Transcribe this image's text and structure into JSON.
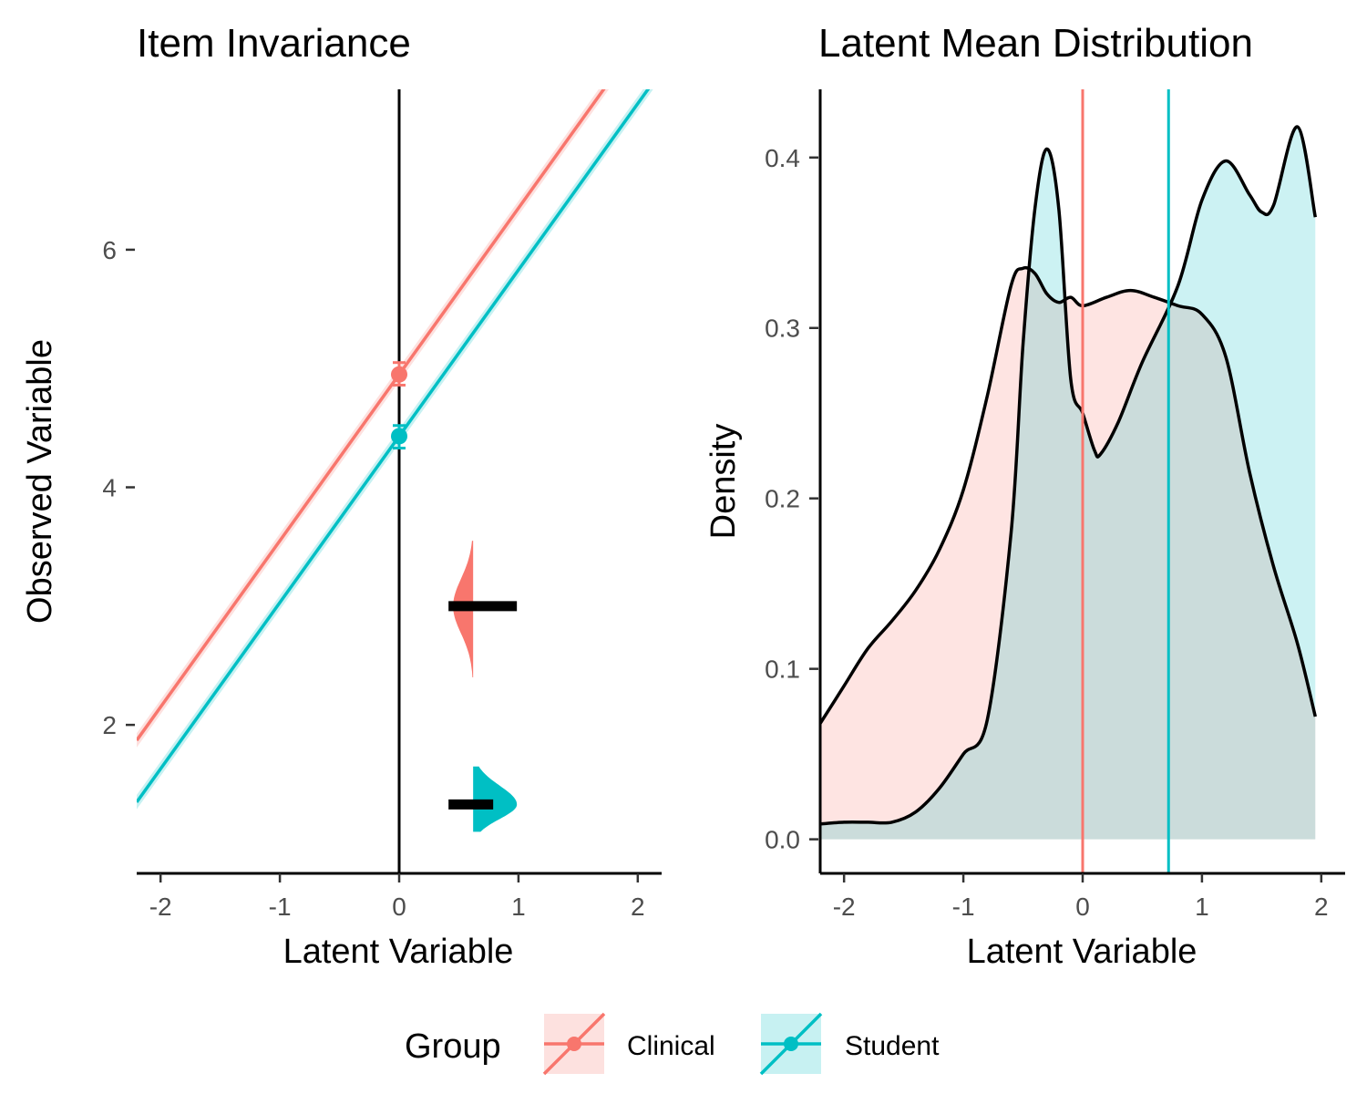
{
  "chart_data": [
    {
      "type": "line",
      "title": "Item Invariance",
      "xlabel": "Latent Variable",
      "ylabel": "Observed Variable",
      "xlim": [
        -2.2,
        2.2
      ],
      "ylim": [
        0.75,
        7.35
      ],
      "x_ticks": [
        "-2",
        "-1",
        "0",
        "1",
        "2"
      ],
      "y_ticks": [
        "2",
        "4",
        "6"
      ],
      "vline_x": 0,
      "series": [
        {
          "name": "Clinical",
          "color": "#f8766d",
          "line": {
            "intercept": 4.95,
            "slope": 1.4
          },
          "point": {
            "x": 0,
            "y": 4.95,
            "err_low": 4.86,
            "err_high": 5.05
          },
          "density": {
            "x": 0.62,
            "center": 3.0,
            "min": 2.4,
            "max": 3.55
          }
        },
        {
          "name": "Student",
          "color": "#00bfc4",
          "line": {
            "intercept": 4.43,
            "slope": 1.4
          },
          "point": {
            "x": 0,
            "y": 4.43,
            "err_low": 4.33,
            "err_high": 4.52
          },
          "density": {
            "x": 0.62,
            "center": 1.33,
            "min": 1.1,
            "max": 1.65
          }
        }
      ]
    },
    {
      "type": "area",
      "title": "Latent Mean Distribution",
      "xlabel": "Latent Variable",
      "ylabel": "Density",
      "xlim": [
        -2.2,
        2.2
      ],
      "ylim": [
        -0.02,
        0.44
      ],
      "x_ticks": [
        "-2",
        "-1",
        "0",
        "1",
        "2"
      ],
      "y_ticks": [
        "0.0",
        "0.1",
        "0.2",
        "0.3",
        "0.4"
      ],
      "series": [
        {
          "name": "Clinical",
          "color": "#f8766d",
          "mean_line": 0,
          "x": [
            -2.2,
            -2.0,
            -1.8,
            -1.6,
            -1.4,
            -1.2,
            -1.0,
            -0.8,
            -0.6,
            -0.5,
            -0.4,
            -0.3,
            -0.2,
            -0.1,
            0.0,
            0.2,
            0.4,
            0.6,
            0.8,
            1.0,
            1.2,
            1.4,
            1.6,
            1.8,
            1.95
          ],
          "y": [
            0.068,
            0.09,
            0.112,
            0.128,
            0.146,
            0.17,
            0.205,
            0.26,
            0.325,
            0.335,
            0.332,
            0.32,
            0.315,
            0.318,
            0.313,
            0.318,
            0.322,
            0.318,
            0.313,
            0.308,
            0.283,
            0.215,
            0.16,
            0.115,
            0.072
          ]
        },
        {
          "name": "Student",
          "color": "#00bfc4",
          "mean_line": 0.72,
          "x": [
            -2.2,
            -2.0,
            -1.8,
            -1.6,
            -1.4,
            -1.2,
            -1.0,
            -0.8,
            -0.6,
            -0.5,
            -0.4,
            -0.3,
            -0.2,
            -0.1,
            0.0,
            0.1,
            0.15,
            0.3,
            0.5,
            0.8,
            1.0,
            1.2,
            1.4,
            1.5,
            1.6,
            1.8,
            1.95
          ],
          "y": [
            0.009,
            0.01,
            0.01,
            0.01,
            0.016,
            0.03,
            0.05,
            0.07,
            0.18,
            0.29,
            0.37,
            0.405,
            0.37,
            0.27,
            0.25,
            0.228,
            0.226,
            0.245,
            0.28,
            0.325,
            0.375,
            0.398,
            0.378,
            0.368,
            0.372,
            0.418,
            0.365
          ]
        }
      ]
    }
  ],
  "legend": {
    "title": "Group",
    "position": "bottom",
    "items": [
      "Clinical",
      "Student"
    ]
  }
}
